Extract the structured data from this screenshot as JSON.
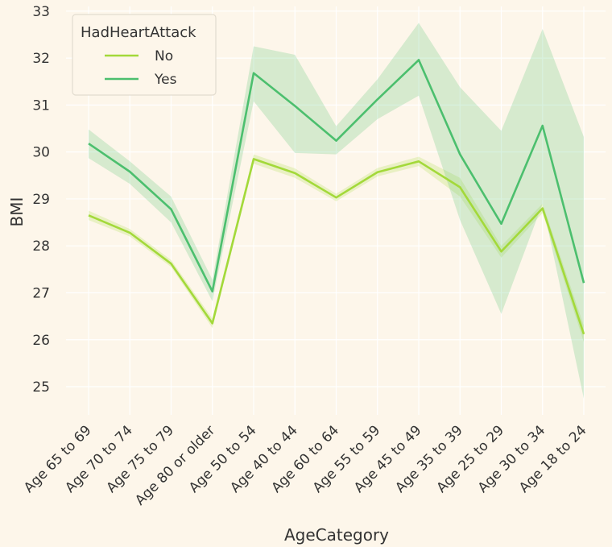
{
  "chart_data": {
    "type": "line",
    "xlabel": "AgeCategory",
    "ylabel": "BMI",
    "categories": [
      "Age 65 to 69",
      "Age 70 to 74",
      "Age 75 to 79",
      "Age 80 or older",
      "Age 50 to 54",
      "Age 40 to 44",
      "Age 60 to 64",
      "Age 55 to 59",
      "Age 45 to 49",
      "Age 35 to 39",
      "Age 25 to 29",
      "Age 30 to 34",
      "Age 18 to 24"
    ],
    "ylim": [
      24.4,
      33.1
    ],
    "yticks": [
      25,
      26,
      27,
      28,
      29,
      30,
      31,
      32,
      33
    ],
    "grid": true,
    "legend": {
      "title": "HadHeartAttack",
      "position": "top-left"
    },
    "series": [
      {
        "name": "No",
        "color": "#a3d93a",
        "values": [
          28.65,
          28.28,
          27.62,
          26.35,
          29.85,
          29.55,
          29.03,
          29.57,
          29.8,
          29.25,
          27.88,
          28.8,
          26.12
        ],
        "ci_low": [
          28.55,
          28.2,
          27.55,
          26.25,
          29.75,
          29.45,
          28.95,
          29.48,
          29.7,
          29.05,
          27.75,
          28.7,
          25.95
        ],
        "ci_high": [
          28.75,
          28.36,
          27.7,
          26.45,
          29.95,
          29.65,
          29.11,
          29.66,
          29.9,
          29.45,
          28.0,
          28.9,
          26.3
        ]
      },
      {
        "name": "Yes",
        "color": "#4cbf6e",
        "values": [
          30.18,
          29.58,
          28.78,
          27.03,
          31.68,
          30.98,
          30.24,
          31.12,
          31.96,
          29.95,
          28.47,
          30.56,
          27.21
        ],
        "ci_low": [
          29.87,
          29.32,
          28.5,
          26.82,
          31.08,
          29.98,
          29.95,
          30.7,
          31.2,
          28.55,
          26.55,
          28.9,
          24.75
        ],
        "ci_high": [
          30.48,
          29.8,
          29.05,
          27.28,
          32.25,
          32.07,
          30.55,
          31.55,
          32.75,
          31.38,
          30.45,
          32.62,
          30.32
        ]
      }
    ]
  }
}
